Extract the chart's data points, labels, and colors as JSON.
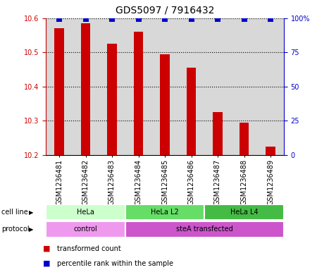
{
  "title": "GDS5097 / 7916432",
  "samples": [
    "GSM1236481",
    "GSM1236482",
    "GSM1236483",
    "GSM1236484",
    "GSM1236485",
    "GSM1236486",
    "GSM1236487",
    "GSM1236488",
    "GSM1236489"
  ],
  "transformed_counts": [
    10.57,
    10.585,
    10.525,
    10.56,
    10.495,
    10.455,
    10.325,
    10.295,
    10.225
  ],
  "percentile_ranks": [
    99,
    99,
    99,
    99,
    99,
    99,
    99,
    99,
    99
  ],
  "ymin": 10.2,
  "ymax": 10.6,
  "yticks": [
    10.2,
    10.3,
    10.4,
    10.5,
    10.6
  ],
  "right_yticks": [
    0,
    25,
    50,
    75,
    100
  ],
  "right_ytick_labels": [
    "0",
    "25",
    "50",
    "75",
    "100%"
  ],
  "bar_color": "#cc0000",
  "dot_color": "#0000cc",
  "col_bg_color": "#d8d8d8",
  "cell_line_groups": [
    {
      "label": "HeLa",
      "start": 0,
      "end": 3,
      "color": "#ccffcc"
    },
    {
      "label": "HeLa L2",
      "start": 3,
      "end": 6,
      "color": "#66dd66"
    },
    {
      "label": "HeLa L4",
      "start": 6,
      "end": 9,
      "color": "#44bb44"
    }
  ],
  "protocol_groups": [
    {
      "label": "control",
      "start": 0,
      "end": 3,
      "color": "#ee99ee"
    },
    {
      "label": "steA transfected",
      "start": 3,
      "end": 9,
      "color": "#cc55cc"
    }
  ],
  "left_axis_color": "#cc0000",
  "right_axis_color": "#0000cc",
  "title_fontsize": 10,
  "tick_fontsize": 7,
  "label_fontsize": 8,
  "bar_width": 0.35,
  "dot_size": 28
}
